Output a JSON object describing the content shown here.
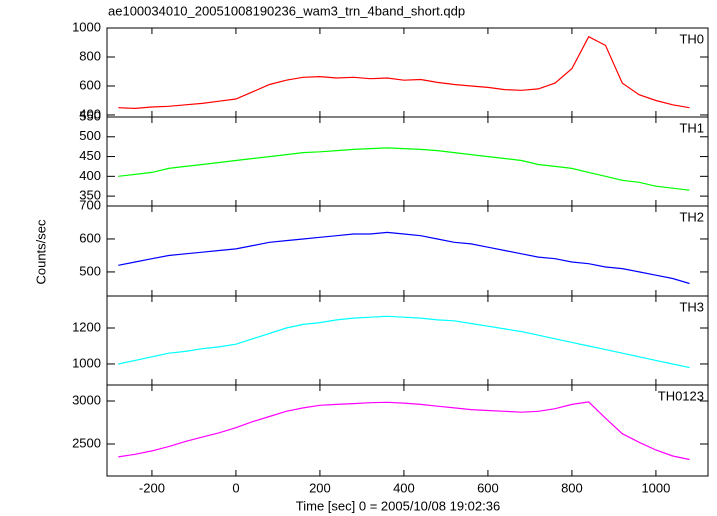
{
  "title": "ae100034010_20051008190236_wam3_trn_4band_short.qdp",
  "x_label": "Time [sec] 0 = 2005/10/08 19:02:36",
  "y_label": "Counts/sec",
  "chart_data": [
    {
      "type": "line",
      "x": [
        -280,
        -240,
        -200,
        -160,
        -120,
        -80,
        -40,
        0,
        40,
        80,
        120,
        160,
        200,
        240,
        280,
        320,
        360,
        400,
        440,
        480,
        520,
        560,
        600,
        640,
        680,
        720,
        760,
        800,
        840,
        880,
        920,
        960,
        1000,
        1040,
        1080
      ],
      "series": [
        {
          "name": "TH0",
          "color": "#ff0000",
          "values": [
            450,
            445,
            455,
            460,
            470,
            480,
            495,
            510,
            560,
            610,
            640,
            660,
            665,
            655,
            660,
            650,
            655,
            640,
            645,
            625,
            610,
            600,
            590,
            575,
            570,
            580,
            620,
            720,
            940,
            880,
            620,
            540,
            500,
            470,
            450
          ]
        }
      ],
      "xlim": [
        -307,
        1124
      ],
      "xticks": [
        -200,
        0,
        200,
        400,
        600,
        800,
        1000
      ],
      "ylim": [
        386,
        1000
      ],
      "yticks": [
        400,
        600,
        800,
        1000
      ]
    },
    {
      "type": "line",
      "x": [
        -280,
        -240,
        -200,
        -160,
        -120,
        -80,
        -40,
        0,
        40,
        80,
        120,
        160,
        200,
        240,
        280,
        320,
        360,
        400,
        440,
        480,
        520,
        560,
        600,
        640,
        680,
        720,
        760,
        800,
        840,
        880,
        920,
        960,
        1000,
        1040,
        1080
      ],
      "series": [
        {
          "name": "TH1",
          "color": "#00ff00",
          "values": [
            400,
            405,
            410,
            420,
            425,
            430,
            435,
            440,
            445,
            450,
            455,
            460,
            462,
            465,
            468,
            470,
            472,
            470,
            468,
            465,
            460,
            455,
            450,
            445,
            440,
            430,
            425,
            420,
            410,
            400,
            390,
            385,
            375,
            370,
            365
          ]
        }
      ],
      "xlim": [
        -307,
        1124
      ],
      "xticks": [
        -200,
        0,
        200,
        400,
        600,
        800,
        1000
      ],
      "ylim": [
        325,
        550
      ],
      "yticks": [
        350,
        400,
        450,
        500,
        550
      ]
    },
    {
      "type": "line",
      "x": [
        -280,
        -240,
        -200,
        -160,
        -120,
        -80,
        -40,
        0,
        40,
        80,
        120,
        160,
        200,
        240,
        280,
        320,
        360,
        400,
        440,
        480,
        520,
        560,
        600,
        640,
        680,
        720,
        760,
        800,
        840,
        880,
        920,
        960,
        1000,
        1040,
        1080
      ],
      "series": [
        {
          "name": "TH2",
          "color": "#0000ff",
          "values": [
            520,
            530,
            540,
            550,
            555,
            560,
            565,
            570,
            580,
            590,
            595,
            600,
            605,
            610,
            615,
            615,
            620,
            615,
            610,
            600,
            590,
            585,
            575,
            565,
            555,
            545,
            540,
            530,
            525,
            515,
            510,
            500,
            490,
            480,
            465
          ]
        }
      ],
      "xlim": [
        -307,
        1124
      ],
      "xticks": [
        -200,
        0,
        200,
        400,
        600,
        800,
        1000
      ],
      "ylim": [
        427,
        700
      ],
      "yticks": [
        500,
        600,
        700
      ]
    },
    {
      "type": "line",
      "x": [
        -280,
        -240,
        -200,
        -160,
        -120,
        -80,
        -40,
        0,
        40,
        80,
        120,
        160,
        200,
        240,
        280,
        320,
        360,
        400,
        440,
        480,
        520,
        560,
        600,
        640,
        680,
        720,
        760,
        800,
        840,
        880,
        920,
        960,
        1000,
        1040,
        1080
      ],
      "series": [
        {
          "name": "TH3",
          "color": "#00ffff",
          "values": [
            1000,
            1020,
            1040,
            1060,
            1070,
            1085,
            1095,
            1110,
            1140,
            1170,
            1200,
            1220,
            1230,
            1245,
            1255,
            1260,
            1265,
            1260,
            1255,
            1245,
            1240,
            1225,
            1210,
            1195,
            1180,
            1160,
            1140,
            1120,
            1100,
            1080,
            1060,
            1040,
            1020,
            1000,
            980
          ]
        }
      ],
      "xlim": [
        -307,
        1124
      ],
      "xticks": [
        -200,
        0,
        200,
        400,
        600,
        800,
        1000
      ],
      "ylim": [
        883,
        1378
      ],
      "yticks": [
        1000,
        1200
      ]
    },
    {
      "type": "line",
      "x": [
        -280,
        -240,
        -200,
        -160,
        -120,
        -80,
        -40,
        0,
        40,
        80,
        120,
        160,
        200,
        240,
        280,
        320,
        360,
        400,
        440,
        480,
        520,
        560,
        600,
        640,
        680,
        720,
        760,
        800,
        840,
        880,
        920,
        960,
        1000,
        1040,
        1080
      ],
      "series": [
        {
          "name": "TH0123",
          "color": "#ff00ff",
          "values": [
            2350,
            2380,
            2420,
            2470,
            2530,
            2580,
            2630,
            2690,
            2760,
            2820,
            2880,
            2920,
            2950,
            2960,
            2970,
            2980,
            2985,
            2975,
            2960,
            2940,
            2920,
            2900,
            2890,
            2880,
            2870,
            2880,
            2910,
            2960,
            2990,
            2800,
            2620,
            2520,
            2430,
            2360,
            2320
          ]
        }
      ],
      "xlim": [
        -307,
        1124
      ],
      "xticks": [
        -200,
        0,
        200,
        400,
        600,
        800,
        1000
      ],
      "ylim": [
        2128,
        3186
      ],
      "yticks": [
        2500,
        3000
      ]
    }
  ]
}
